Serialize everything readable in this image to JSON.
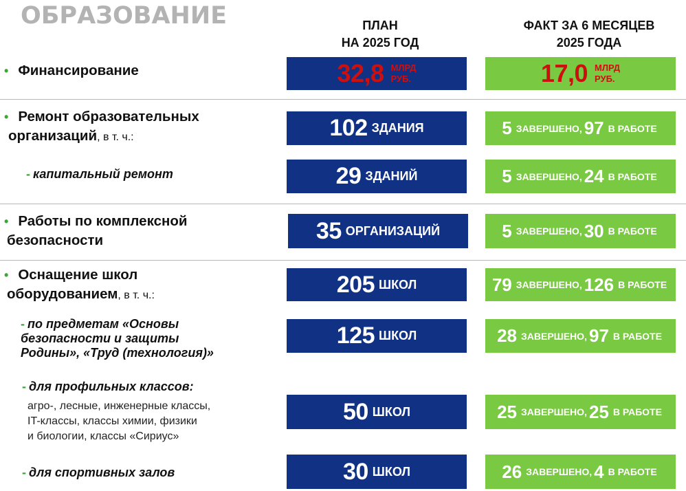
{
  "title": "ОБРАЗОВАНИЕ",
  "columns": {
    "plan_line1": "ПЛАН",
    "plan_line2": "НА 2025 ГОД",
    "fact_line1": "ФАКТ ЗА 6 МЕСЯЦЕВ",
    "fact_line2": "2025 ГОДА"
  },
  "colors": {
    "plan_box": "#113284",
    "fact_box": "#7ac943",
    "financing_value": "#cc1010",
    "bullet": "#3aa635",
    "title": "#b3b3b3"
  },
  "words": {
    "done": "ЗАВЕРШЕНО,",
    "in_work": "В РАБОТЕ"
  },
  "financing": {
    "label": "Финансирование",
    "plan_value": "32,8",
    "fact_value": "17,0",
    "unit_line1": "МЛРД",
    "unit_line2": "РУБ."
  },
  "repair": {
    "label_line1": "Ремонт образовательных",
    "label_line2": "организаций",
    "label_suffix": ", в т. ч.:",
    "plan_value": "102",
    "plan_unit": "ЗДАНИЯ",
    "done": "5",
    "in_work": "97"
  },
  "capital_repair": {
    "label": "капитальный ремонт",
    "plan_value": "29",
    "plan_unit": "ЗДАНИЙ",
    "done": "5",
    "in_work": "24"
  },
  "security": {
    "label_line1": "Работы по комплексной",
    "label_line2": "безопасности",
    "plan_value": "35",
    "plan_unit": "ОРГАНИЗАЦИЙ",
    "done": "5",
    "in_work": "30"
  },
  "equipment": {
    "label_line1": "Оснащение школ",
    "label_line2": "оборудованием",
    "label_suffix": ", в т. ч.:",
    "plan_value": "205",
    "plan_unit": "ШКОЛ",
    "done": "79",
    "in_work": "126"
  },
  "subjects": {
    "label_line1": "по предметам «Основы",
    "label_line2": "безопасности и защиты",
    "label_line3": "Родины», «Труд (технология)»",
    "plan_value": "125",
    "plan_unit": "ШКОЛ",
    "done": "28",
    "in_work": "97"
  },
  "profile": {
    "label": "для профильных классов:",
    "desc_line1": "агро-, лесные, инженерные классы,",
    "desc_line2": "IT-классы, классы химии, физики",
    "desc_line3": "и биологии, классы «Сириус»",
    "plan_value": "50",
    "plan_unit": "ШКОЛ",
    "done": "25",
    "in_work": "25"
  },
  "sports": {
    "label": "для спортивных залов",
    "plan_value": "30",
    "plan_unit": "ШКОЛ",
    "done": "26",
    "in_work": "4"
  }
}
